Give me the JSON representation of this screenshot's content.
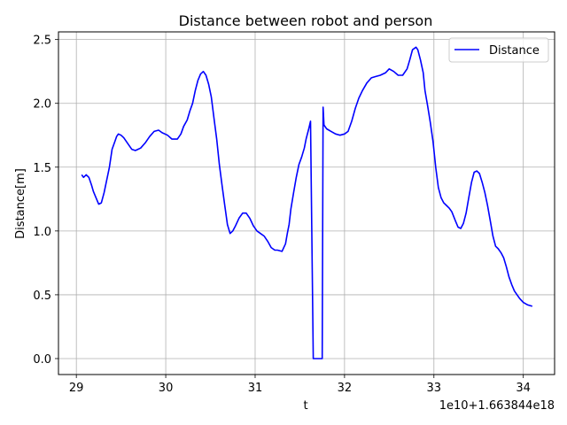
{
  "chart_data": {
    "type": "line",
    "title": "Distance between robot and person",
    "xlabel": "t",
    "ylabel": "Distance[m]",
    "offset_label": "1e10+1.663844e18",
    "xlim": [
      28.8,
      34.35
    ],
    "ylim": [
      -0.125,
      2.56
    ],
    "xticks": [
      29,
      30,
      31,
      32,
      33,
      34
    ],
    "xtick_labels": [
      "29",
      "30",
      "31",
      "32",
      "33",
      "34"
    ],
    "yticks": [
      0.0,
      0.5,
      1.0,
      1.5,
      2.0,
      2.5
    ],
    "ytick_labels": [
      "0.0",
      "0.5",
      "1.0",
      "1.5",
      "2.0",
      "2.5"
    ],
    "grid": true,
    "legend_position": "top-right",
    "series": [
      {
        "name": "Distance",
        "color": "#0000ff",
        "x": [
          29.06,
          29.08,
          29.11,
          29.14,
          29.17,
          29.19,
          29.22,
          29.25,
          29.28,
          29.31,
          29.34,
          29.37,
          29.4,
          29.43,
          29.45,
          29.47,
          29.5,
          29.53,
          29.58,
          29.62,
          29.66,
          29.69,
          29.72,
          29.77,
          29.82,
          29.87,
          29.92,
          29.96,
          30.02,
          30.07,
          30.1,
          30.13,
          30.17,
          30.2,
          30.24,
          30.27,
          30.3,
          30.33,
          30.36,
          30.39,
          30.42,
          30.45,
          30.48,
          30.51,
          30.54,
          30.57,
          30.6,
          30.63,
          30.66,
          30.69,
          30.72,
          30.75,
          30.78,
          30.82,
          30.86,
          30.9,
          30.94,
          30.98,
          31.02,
          31.06,
          31.1,
          31.14,
          31.18,
          31.22,
          31.25,
          31.3,
          31.34,
          31.36,
          31.38,
          31.4,
          31.43,
          31.46,
          31.49,
          31.52,
          31.55,
          31.57,
          31.6,
          31.62,
          31.65,
          31.66,
          31.67,
          31.75,
          31.76,
          31.77,
          31.8,
          31.85,
          31.9,
          31.95,
          32.0,
          32.04,
          32.08,
          32.12,
          32.16,
          32.2,
          32.25,
          32.3,
          32.35,
          32.4,
          32.46,
          32.5,
          32.55,
          32.6,
          32.65,
          32.7,
          32.73,
          32.76,
          32.8,
          32.82,
          32.85,
          32.88,
          32.9,
          32.93,
          32.96,
          32.99,
          33.02,
          33.05,
          33.08,
          33.11,
          33.14,
          33.17,
          33.2,
          33.24,
          33.27,
          33.3,
          33.33,
          33.36,
          33.39,
          33.42,
          33.45,
          33.48,
          33.51,
          33.54,
          33.57,
          33.6,
          33.63,
          33.66,
          33.69,
          33.72,
          33.75,
          33.78,
          33.81,
          33.84,
          33.87,
          33.9,
          33.93,
          33.96,
          34.0,
          34.05,
          34.1
        ],
        "y": [
          1.44,
          1.42,
          1.44,
          1.42,
          1.36,
          1.31,
          1.26,
          1.21,
          1.22,
          1.3,
          1.4,
          1.5,
          1.64,
          1.7,
          1.74,
          1.76,
          1.75,
          1.73,
          1.68,
          1.64,
          1.63,
          1.64,
          1.65,
          1.69,
          1.74,
          1.78,
          1.79,
          1.77,
          1.75,
          1.72,
          1.72,
          1.72,
          1.76,
          1.82,
          1.87,
          1.94,
          2.0,
          2.1,
          2.18,
          2.23,
          2.25,
          2.22,
          2.15,
          2.05,
          1.88,
          1.72,
          1.52,
          1.36,
          1.2,
          1.05,
          0.98,
          1.0,
          1.04,
          1.1,
          1.14,
          1.14,
          1.1,
          1.04,
          1.0,
          0.98,
          0.96,
          0.92,
          0.87,
          0.85,
          0.85,
          0.84,
          0.9,
          0.98,
          1.05,
          1.17,
          1.3,
          1.42,
          1.52,
          1.58,
          1.65,
          1.72,
          1.8,
          1.86,
          0.0,
          0.0,
          0.0,
          0.0,
          1.97,
          1.83,
          1.8,
          1.78,
          1.76,
          1.75,
          1.76,
          1.78,
          1.86,
          1.96,
          2.04,
          2.1,
          2.16,
          2.2,
          2.21,
          2.22,
          2.24,
          2.27,
          2.25,
          2.22,
          2.22,
          2.27,
          2.34,
          2.42,
          2.44,
          2.42,
          2.34,
          2.24,
          2.1,
          1.98,
          1.85,
          1.7,
          1.5,
          1.34,
          1.26,
          1.22,
          1.2,
          1.18,
          1.15,
          1.08,
          1.03,
          1.02,
          1.06,
          1.14,
          1.26,
          1.38,
          1.46,
          1.47,
          1.45,
          1.38,
          1.3,
          1.2,
          1.08,
          0.96,
          0.88,
          0.86,
          0.83,
          0.79,
          0.72,
          0.64,
          0.58,
          0.53,
          0.5,
          0.47,
          0.44,
          0.42,
          0.41
        ]
      }
    ]
  }
}
